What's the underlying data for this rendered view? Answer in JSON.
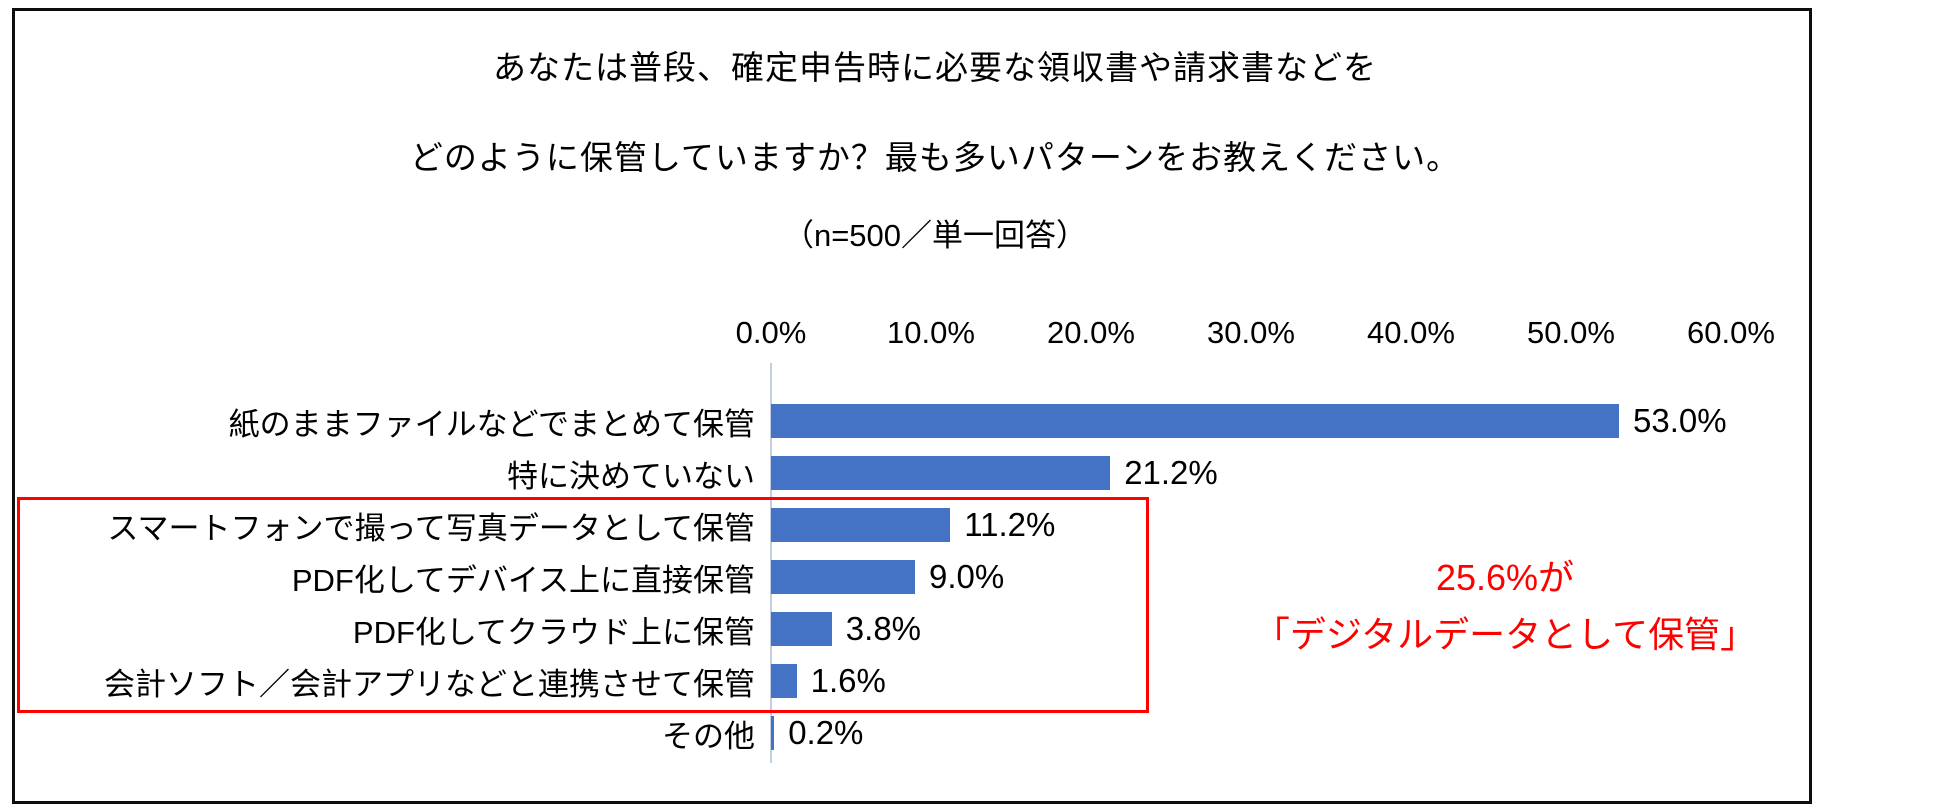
{
  "chart": {
    "title_line1": "あなたは普段、確定申告時に必要な領収書や請求書などを",
    "title_line2": "どのように保管していますか？最も多いパターンをお教えください。",
    "subtitle": "（n=500／単一回答）",
    "annotation_line1": "25.6%が",
    "annotation_line2": "「デジタルデータとして保管」"
  },
  "chart_data": {
    "type": "bar",
    "orientation": "horizontal",
    "title": "あなたは普段、確定申告時に必要な領収書や請求書などを どのように保管していますか？最も多いパターンをお教えください。",
    "subtitle": "（n=500／単一回答）",
    "categories": [
      "紙のままファイルなどでまとめて保管",
      "特に決めていない",
      "スマートフォンで撮って写真データとして保管",
      "PDF化してデバイス上に直接保管",
      "PDF化してクラウド上に保管",
      "会計ソフト／会計アプリなどと連携させて保管",
      "その他"
    ],
    "values": [
      53.0,
      21.2,
      11.2,
      9.0,
      3.8,
      1.6,
      0.2
    ],
    "value_labels": [
      "53.0%",
      "21.2%",
      "11.2%",
      "9.0%",
      "3.8%",
      "1.6%",
      "0.2%"
    ],
    "x_ticks": [
      "0.0%",
      "10.0%",
      "20.0%",
      "30.0%",
      "40.0%",
      "50.0%",
      "60.0%"
    ],
    "xlim": [
      0,
      60
    ],
    "grid": false,
    "bar_color": "#4472C4",
    "axis_line_color": "#c3cde4",
    "highlight": {
      "highlighted_rows": [
        2,
        3,
        4,
        5
      ],
      "box_color": "#ff0000",
      "text_color": "#ff0000",
      "annotation_line1": "25.6%が",
      "annotation_line2": "「デジタルデータとして保管」"
    }
  }
}
